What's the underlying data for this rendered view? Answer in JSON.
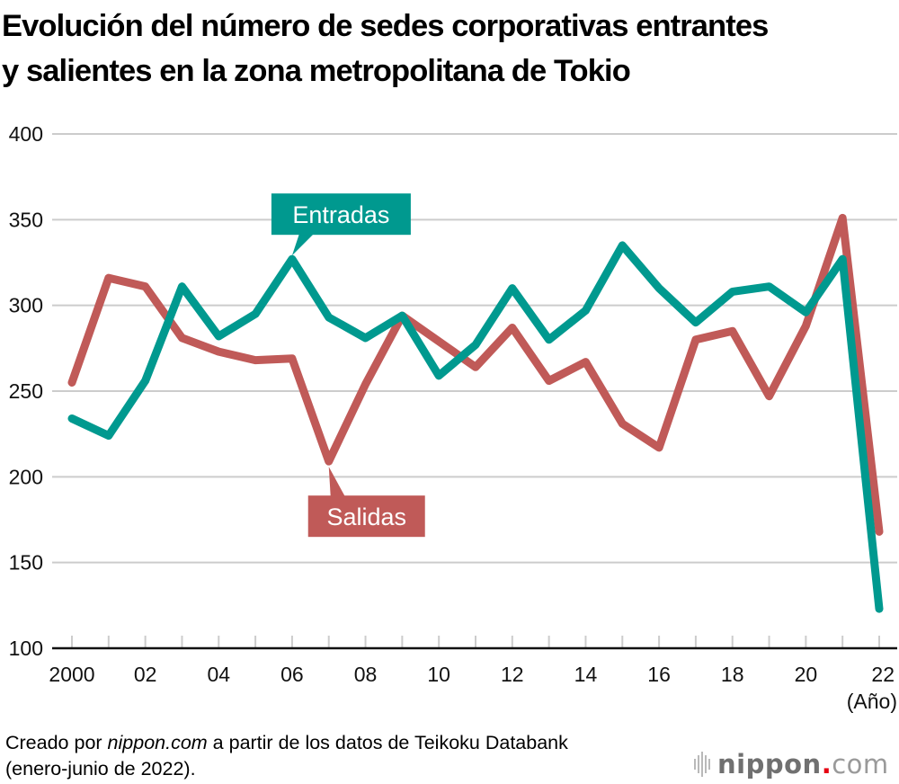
{
  "title_lines": [
    "Evolución del número de sedes corporativas entrantes",
    "y salientes en la zona metropolitana de Tokio"
  ],
  "chart_data": {
    "type": "line",
    "title": "Evolución del número de sedes corporativas entrantes y salientes en la zona metropolitana de Tokio",
    "xlabel": "(Año)",
    "ylabel": "",
    "x": [
      2000,
      2001,
      2002,
      2003,
      2004,
      2005,
      2006,
      2007,
      2008,
      2009,
      2010,
      2011,
      2012,
      2013,
      2014,
      2015,
      2016,
      2017,
      2018,
      2019,
      2020,
      2021,
      2022
    ],
    "x_tick_labels": [
      {
        "x": 2000,
        "label": "2000"
      },
      {
        "x": 2002,
        "label": "02"
      },
      {
        "x": 2004,
        "label": "04"
      },
      {
        "x": 2006,
        "label": "06"
      },
      {
        "x": 2008,
        "label": "08"
      },
      {
        "x": 2010,
        "label": "10"
      },
      {
        "x": 2012,
        "label": "12"
      },
      {
        "x": 2014,
        "label": "14"
      },
      {
        "x": 2016,
        "label": "16"
      },
      {
        "x": 2018,
        "label": "18"
      },
      {
        "x": 2020,
        "label": "20"
      },
      {
        "x": 2022,
        "label": "22"
      }
    ],
    "y_ticks": [
      100,
      150,
      200,
      250,
      300,
      350,
      400
    ],
    "ylim": [
      100,
      400
    ],
    "xlim": [
      2000,
      2022
    ],
    "grid": true,
    "series": [
      {
        "name": "Entradas",
        "color": "#00998f",
        "values": [
          234,
          224,
          256,
          311,
          282,
          295,
          327,
          293,
          281,
          294,
          259,
          277,
          310,
          280,
          297,
          335,
          310,
          290,
          308,
          311,
          296,
          327,
          123
        ]
      },
      {
        "name": "Salidas",
        "color": "#c05a58",
        "values": [
          255,
          316,
          311,
          281,
          273,
          268,
          269,
          209,
          254,
          294,
          279,
          264,
          287,
          256,
          267,
          231,
          217,
          280,
          285,
          247,
          288,
          351,
          168
        ]
      }
    ],
    "annotations": [
      {
        "text": "Entradas",
        "series": "Entradas",
        "points_to_x": 2006,
        "placement": "above"
      },
      {
        "text": "Salidas",
        "series": "Salidas",
        "points_to_x": 2007,
        "placement": "below"
      }
    ]
  },
  "footer": {
    "prefix": "Creado por ",
    "site_italic": "nippon.com",
    "suffix": " a partir de los datos de Teikoku Databank",
    "line2": "(enero-junio de 2022)."
  },
  "logo": {
    "word": "nippon",
    "dot": ".",
    "tld": "com",
    "dot_color": "#e60012"
  }
}
